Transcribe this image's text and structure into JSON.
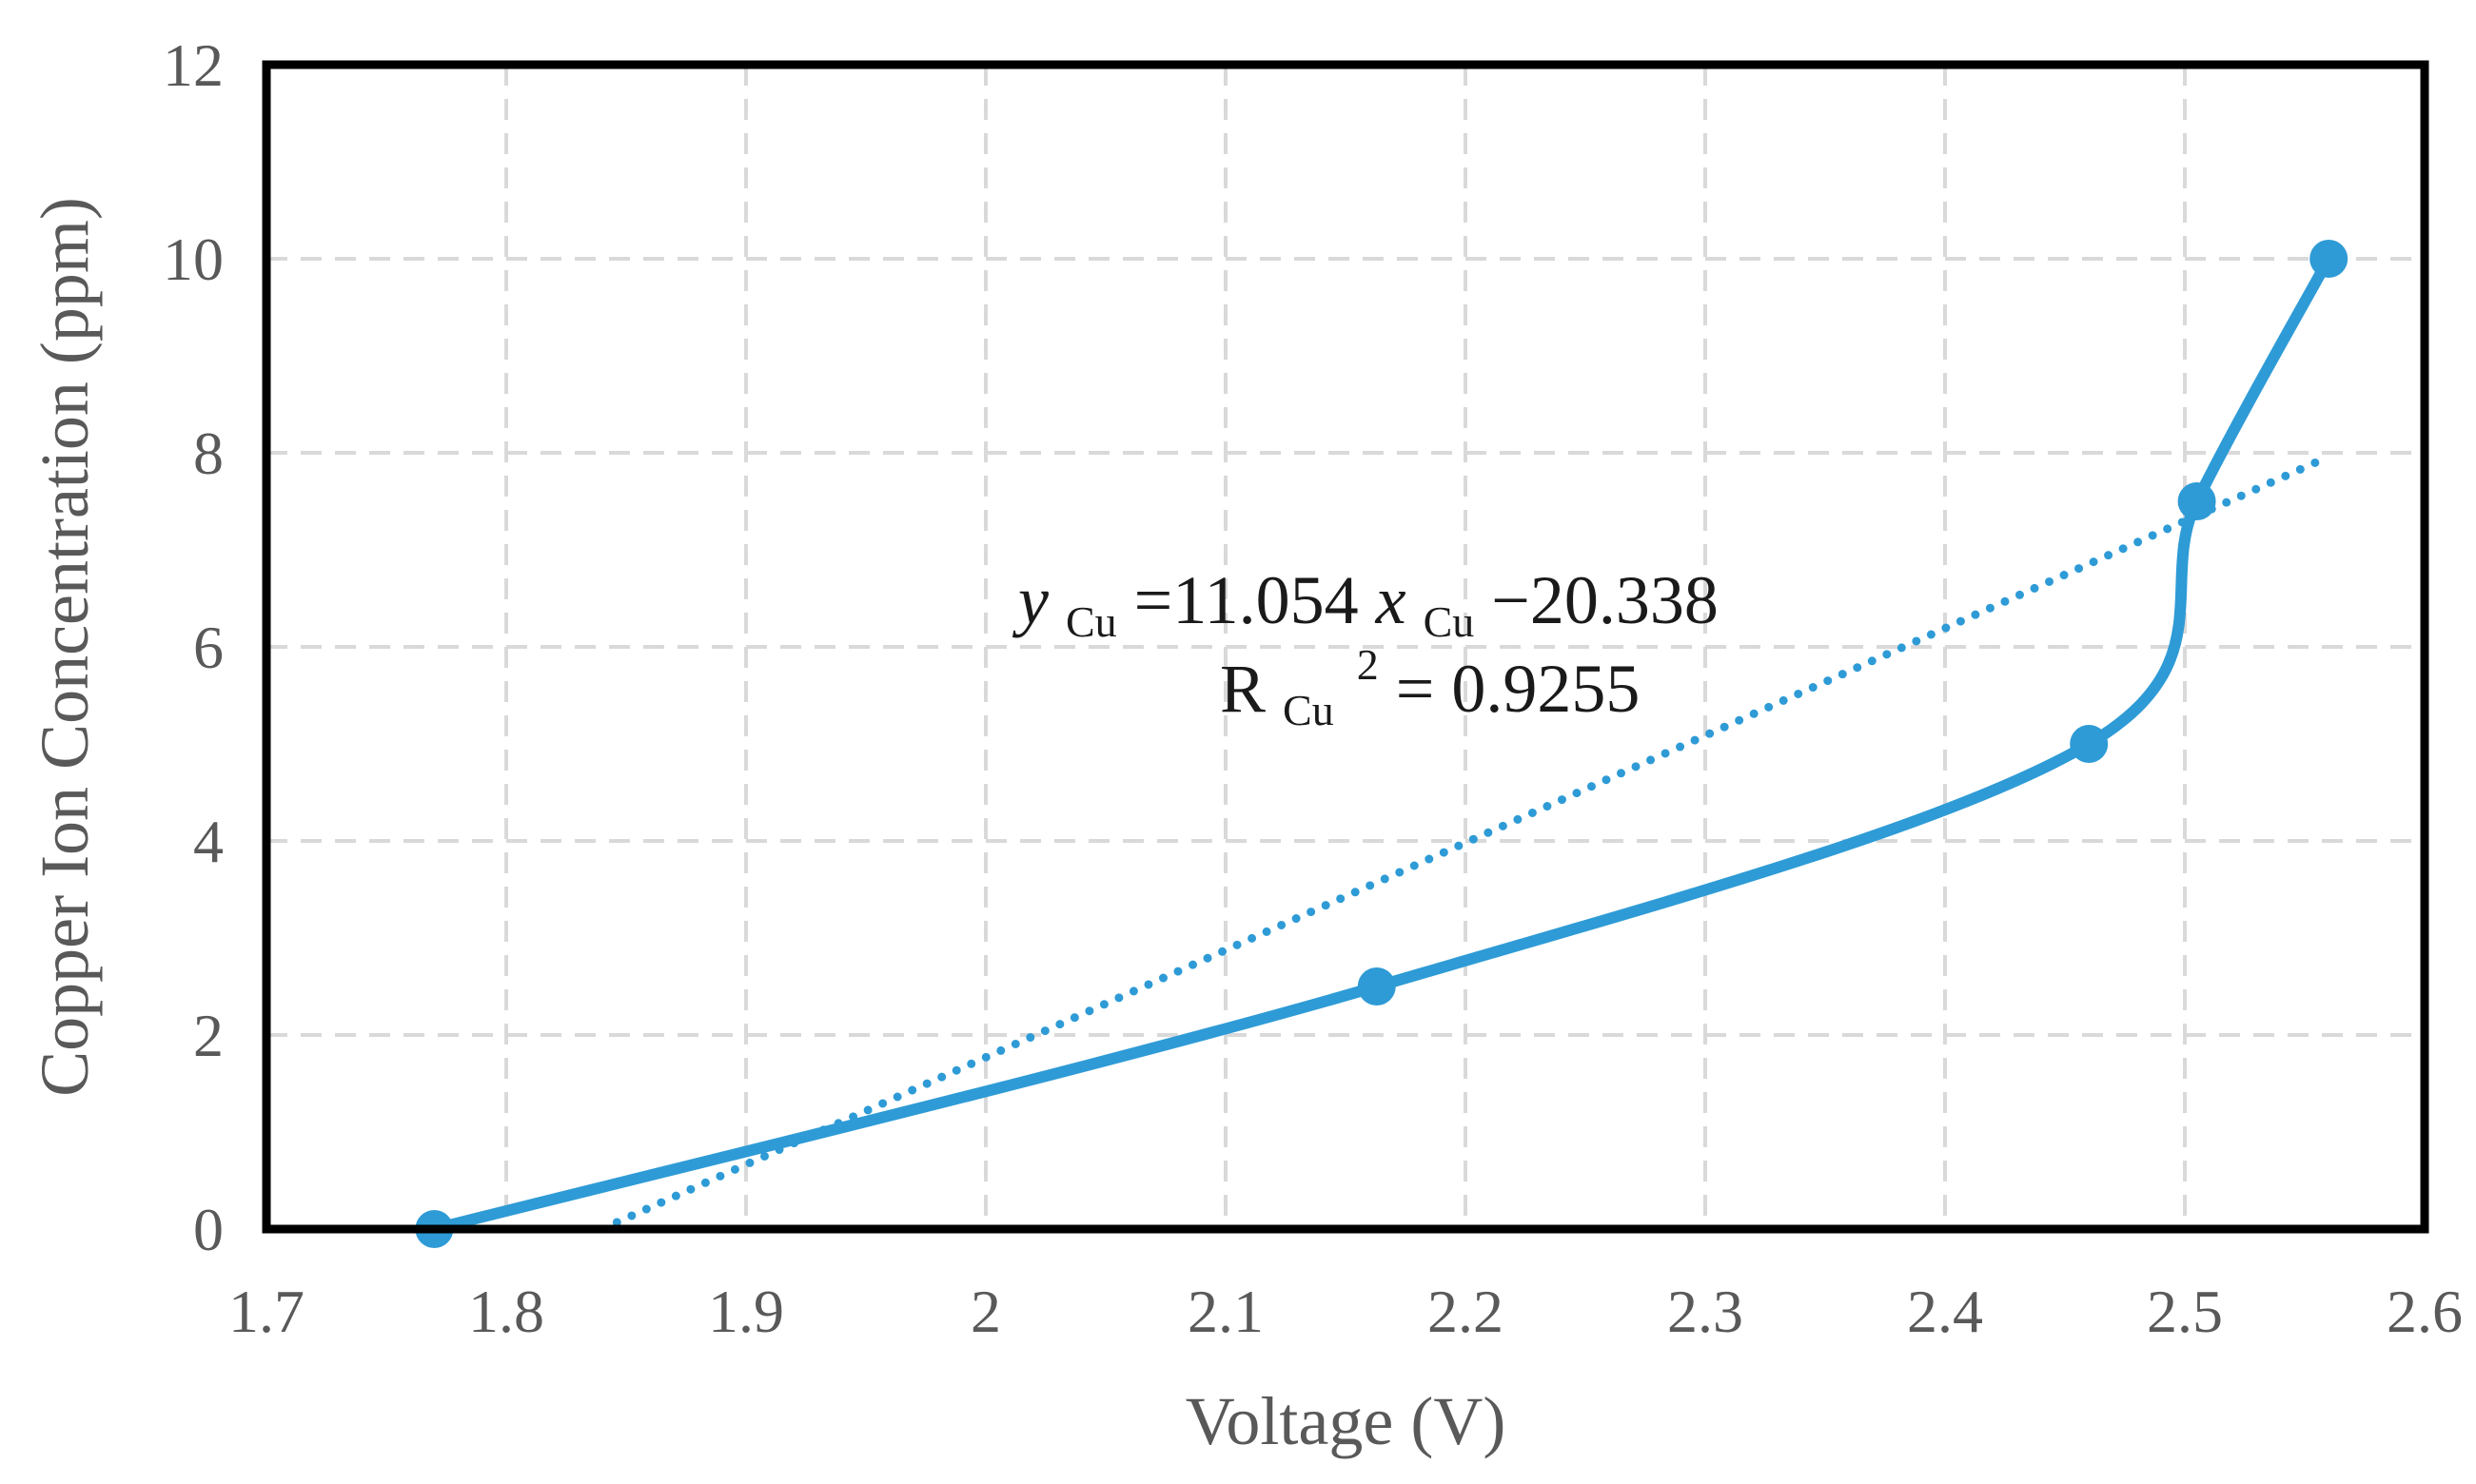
{
  "chart_data": {
    "type": "line",
    "xlabel": "Voltage (V)",
    "ylabel": "Copper Ion Concentration (ppm)",
    "xlim": [
      1.7,
      2.6
    ],
    "ylim": [
      0,
      12
    ],
    "x_ticks": [
      "1.7",
      "1.8",
      "1.9",
      "2",
      "2.1",
      "2.2",
      "2.3",
      "2.4",
      "2.5",
      "2.6"
    ],
    "y_ticks": [
      "0",
      "2",
      "4",
      "6",
      "8",
      "10",
      "12"
    ],
    "grid": true,
    "series": [
      {
        "x": [
          1.77,
          2.163,
          2.46,
          2.505,
          2.56
        ],
        "y": [
          0,
          2.5,
          5,
          7.5,
          10
        ],
        "color": "#2e9bd6",
        "smooth": true,
        "markers": true
      }
    ],
    "trendline": {
      "slope": 11.054,
      "intercept": -20.338,
      "x_range": [
        1.84,
        2.557
      ],
      "color": "#2e9bd6",
      "style": "dotted"
    },
    "annotation": {
      "eq_y": "y",
      "eq_y_sub": "Cu",
      "eq_mid": "=11.054 ",
      "eq_x": "x",
      "eq_x_sub": "Cu",
      "eq_tail": "−20.338",
      "r_main": "R",
      "r_sub": "Cu",
      "r_sup": "2",
      "r_tail": " = 0.9255"
    }
  }
}
